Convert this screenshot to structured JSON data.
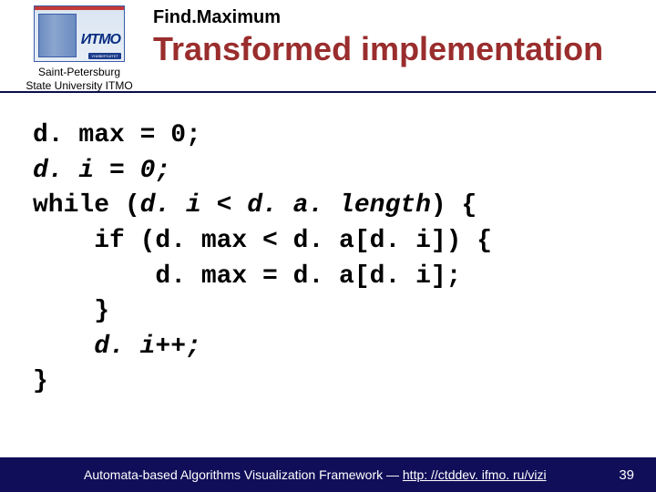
{
  "header": {
    "logo_text_main": "ИТМО",
    "logo_text_sub": "УНИВЕРСИТЕТ",
    "logo_caption_line1": "Saint-Petersburg",
    "logo_caption_line2": "State University ITMO",
    "section_label": "Find.Maximum",
    "main_title": "Transformed implementation"
  },
  "code": {
    "l1a": "d. max = 0;",
    "l2a": "d. i = 0;",
    "l3a": "while (",
    "l3b": "d. i < d. a. length",
    "l3c": ") {",
    "l4a": "    if (d. max < d. a[d. i]) {",
    "l5a": "        d. max = d. a[d. i];",
    "l6a": "    }",
    "l7a": "    d. i++;",
    "l8a": "}"
  },
  "footer": {
    "text_prefix": "Automata-based Algorithms Visualization Framework — ",
    "link_text": "http: //ctddev. ifmo. ru/vizi",
    "page_number": "39"
  },
  "colors": {
    "title_color": "#9a2d2d",
    "footer_bg": "#100e59",
    "rule_color": "#0a0f4a"
  }
}
